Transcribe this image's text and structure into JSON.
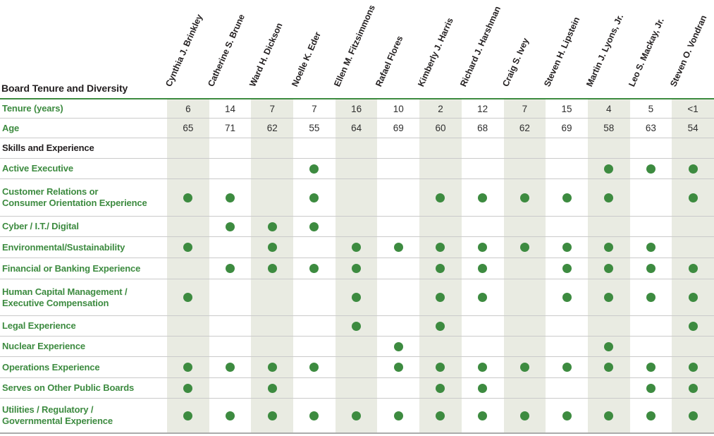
{
  "header": {
    "title": "Board Tenure and Diversity"
  },
  "colors": {
    "green": "#3d8b40",
    "shade": "#e9ebe2",
    "separator": "#cacaca",
    "bottom_border": "#ababab",
    "dark_text": "#231f20",
    "number_text": "#2e2e2e"
  },
  "chart_data": {
    "type": "table",
    "title": "Board Tenure and Diversity",
    "columns": [
      "Cynthia J. Brinkley",
      "Catherine S. Brune",
      "Ward H. Dickson",
      "Noelle K. Eder",
      "Ellen M. Fitzsimmons",
      "Rafael Flores",
      "Kimberly J. Harris",
      "Richard J. Harshman",
      "Craig S. Ivey",
      "Steven H. Lipstein",
      "Martin J. Lyons, Jr.",
      "Leo S. Mackay, Jr.",
      "Steven O. Vondran"
    ],
    "shaded_columns": [
      1,
      3,
      5,
      7,
      9,
      11,
      13
    ],
    "rows": [
      {
        "kind": "values",
        "label": "Tenure (years)",
        "values": [
          "6",
          "14",
          "7",
          "7",
          "16",
          "10",
          "2",
          "12",
          "7",
          "15",
          "4",
          "5",
          "<1"
        ]
      },
      {
        "kind": "values",
        "label": "Age",
        "values": [
          "65",
          "71",
          "62",
          "55",
          "64",
          "69",
          "60",
          "68",
          "62",
          "69",
          "58",
          "63",
          "54"
        ]
      },
      {
        "kind": "section",
        "label": "Skills and Experience"
      },
      {
        "kind": "dots",
        "label": "Active Executive",
        "dot_columns": [
          4,
          11,
          12,
          13
        ]
      },
      {
        "kind": "dots",
        "label": "Customer Relations or\nConsumer Orientation Experience",
        "dot_columns": [
          1,
          2,
          4,
          7,
          8,
          9,
          10,
          11,
          13
        ]
      },
      {
        "kind": "dots",
        "label": "Cyber / I.T./ Digital",
        "dot_columns": [
          2,
          3,
          4
        ]
      },
      {
        "kind": "dots",
        "label": "Environmental/Sustainability",
        "dot_columns": [
          1,
          3,
          5,
          6,
          7,
          8,
          9,
          10,
          11,
          12
        ]
      },
      {
        "kind": "dots",
        "label": "Financial or Banking Experience",
        "dot_columns": [
          2,
          3,
          4,
          5,
          7,
          8,
          10,
          11,
          12,
          13
        ]
      },
      {
        "kind": "dots",
        "label": "Human Capital Management /\nExecutive Compensation",
        "dot_columns": [
          1,
          5,
          7,
          8,
          10,
          11,
          12,
          13
        ]
      },
      {
        "kind": "dots",
        "label": "Legal Experience",
        "dot_columns": [
          5,
          7,
          13
        ]
      },
      {
        "kind": "dots",
        "label": "Nuclear Experience",
        "dot_columns": [
          6,
          11
        ]
      },
      {
        "kind": "dots",
        "label": "Operations Experience",
        "dot_columns": [
          1,
          2,
          3,
          4,
          6,
          7,
          8,
          9,
          10,
          11,
          12,
          13
        ]
      },
      {
        "kind": "dots",
        "label": "Serves on Other Public Boards",
        "dot_columns": [
          1,
          3,
          7,
          8,
          12,
          13
        ]
      },
      {
        "kind": "dots",
        "label": "Utilities / Regulatory /\nGovernmental Experience",
        "dot_columns": [
          1,
          2,
          3,
          4,
          5,
          6,
          7,
          8,
          9,
          10,
          11,
          12,
          13
        ]
      }
    ]
  }
}
